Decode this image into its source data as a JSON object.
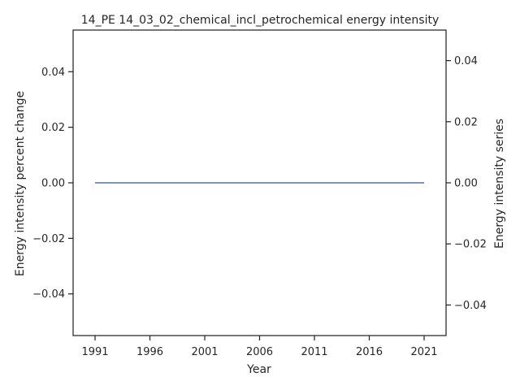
{
  "chart_data": {
    "type": "line",
    "title": "14_PE 14_03_02_chemical_incl_petrochemical energy intensity",
    "xlabel": "Year",
    "ylabel_left": "Energy intensity percent change",
    "ylabel_right": "Energy intensity series",
    "xlim": [
      1989,
      2023
    ],
    "ylim_left": [
      -0.055,
      0.055
    ],
    "ylim_right": [
      -0.05,
      0.05
    ],
    "x_ticks": [
      1991,
      1996,
      2001,
      2006,
      2011,
      2016,
      2021
    ],
    "y_ticks_left": [
      0.04,
      0.02,
      0.0,
      -0.02,
      -0.04
    ],
    "y_ticks_left_labels": [
      "0.04",
      "0.02",
      "0.00",
      "−0.02",
      "−0.04"
    ],
    "y_ticks_right": [
      0.04,
      0.02,
      0.0,
      -0.02,
      -0.04
    ],
    "y_ticks_right_labels": [
      "0.04",
      "0.02",
      "0.00",
      "−0.02",
      "−0.04"
    ],
    "series": [
      {
        "axis": "left",
        "color": "#4c72b0",
        "x": [
          1991,
          1992,
          1993,
          1994,
          1995,
          1996,
          1997,
          1998,
          1999,
          2000,
          2001,
          2002,
          2003,
          2004,
          2005,
          2006,
          2007,
          2008,
          2009,
          2010,
          2011,
          2012,
          2013,
          2014,
          2015,
          2016,
          2017,
          2018,
          2019,
          2020,
          2021
        ],
        "values": [
          0,
          0,
          0,
          0,
          0,
          0,
          0,
          0,
          0,
          0,
          0,
          0,
          0,
          0,
          0,
          0,
          0,
          0,
          0,
          0,
          0,
          0,
          0,
          0,
          0,
          0,
          0,
          0,
          0,
          0,
          0
        ]
      }
    ],
    "grid": false,
    "legend": false
  }
}
